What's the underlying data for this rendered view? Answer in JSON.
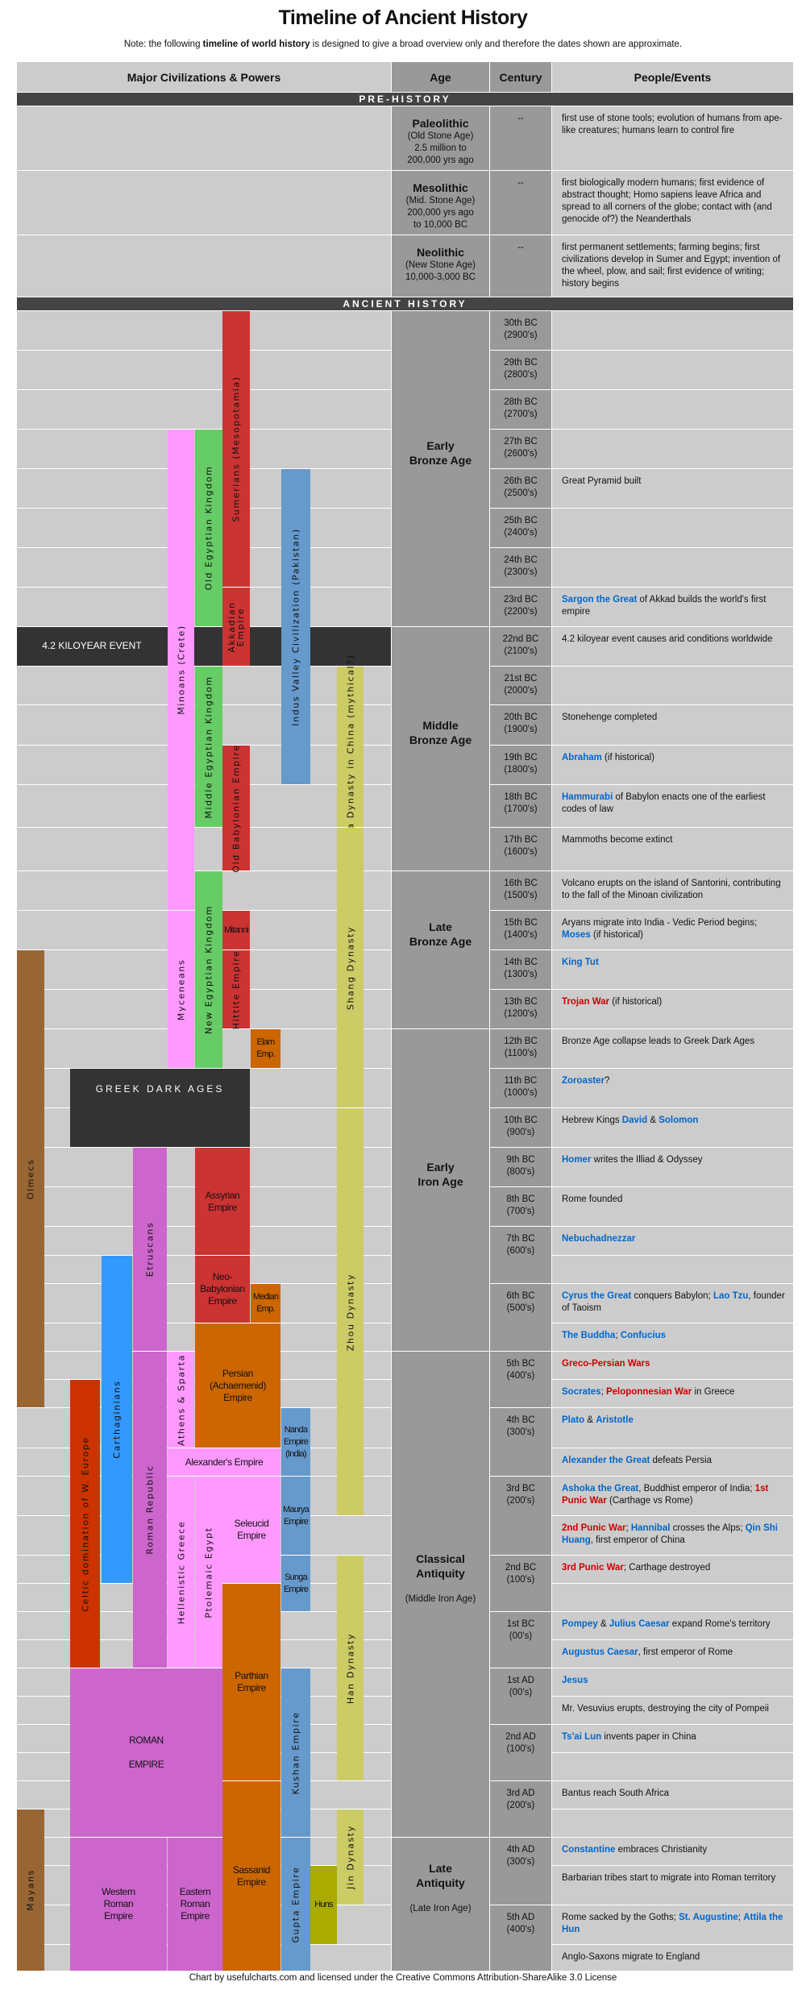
{
  "title": "Timeline of Ancient History",
  "note": {
    "before": "Note: the following ",
    "bold": "timeline of world history",
    "after": " is designed to give a broad overview only and therefore the dates shown are approximate."
  },
  "header": {
    "civs": "Major Civilizations & Powers",
    "age": "Age",
    "century": "Century",
    "events": "People/Events"
  },
  "prehistory": {
    "band": "PRE-HISTORY",
    "rows": [
      {
        "age": "Paleolithic",
        "sub": "(Old Stone Age)\n2.5 million to\n200,000 yrs ago",
        "century": "--",
        "events": "first use of stone tools; evolution of humans from ape-like creatures; humans learn to control fire"
      },
      {
        "age": "Mesolithic",
        "sub": "(Mid. Stone Age)\n200,000 yrs ago\nto 10,000 BC",
        "century": "--",
        "events": "first biologically modern humans; first evidence of abstract thought; Homo sapiens leave Africa and spread to all corners of the globe; contact with (and genocide of?) the Neanderthals"
      },
      {
        "age": "Neolithic",
        "sub": "(New Stone Age)\n10,000-3,000 BC",
        "century": "--",
        "events": "first permanent settlements; farming begins; first civilizations develop in Sumer and Egypt; invention of the wheel, plow, and sail; first evidence of writing; history begins"
      }
    ]
  },
  "ancient": {
    "band": "ANCIENT HISTORY",
    "ages": [
      {
        "name": "Early\nBronze Age",
        "sub": ""
      },
      {
        "name": "Middle\nBronze Age",
        "sub": ""
      },
      {
        "name": "Late\nBronze Age",
        "sub": ""
      },
      {
        "name": "Early\nIron Age",
        "sub": ""
      },
      {
        "name": "Classical\nAntiquity",
        "sub": "(Middle Iron Age)"
      },
      {
        "name": "Late\nAntiquity",
        "sub": "(Late Iron Age)"
      }
    ],
    "centuries": [
      {
        "label": "30th BC\n(2900's)",
        "events": [
          []
        ]
      },
      {
        "label": "29th BC\n(2800's)",
        "events": [
          []
        ]
      },
      {
        "label": "28th BC\n(2700's)",
        "events": [
          []
        ]
      },
      {
        "label": "27th BC\n(2600's)",
        "events": [
          []
        ]
      },
      {
        "label": "26th BC\n(2500's)",
        "events": [
          [
            {
              "text": "Great Pyramid built",
              "kind": ""
            }
          ]
        ]
      },
      {
        "label": "25th BC\n(2400's)",
        "events": [
          []
        ]
      },
      {
        "label": "24th BC\n(2300's)",
        "events": [
          []
        ]
      },
      {
        "label": "23rd BC\n(2200's)",
        "events": [
          [
            {
              "text": "Sargon the Great",
              "kind": "link"
            },
            {
              "text": " of Akkad builds the world's first empire",
              "kind": ""
            }
          ]
        ]
      },
      {
        "label": "22nd BC\n(2100's)",
        "events": [
          [
            {
              "text": "4.2 kiloyear event causes arid conditions worldwide",
              "kind": ""
            }
          ]
        ]
      },
      {
        "label": "21st BC\n(2000's)",
        "events": [
          []
        ]
      },
      {
        "label": "20th BC\n(1900's)",
        "events": [
          [
            {
              "text": "Stonehenge completed",
              "kind": ""
            }
          ]
        ]
      },
      {
        "label": "19th BC\n(1800's)",
        "events": [
          [
            {
              "text": "Abraham",
              "kind": "link"
            },
            {
              "text": " (if historical)",
              "kind": ""
            }
          ]
        ]
      },
      {
        "label": "18th BC\n(1700's)",
        "events": [
          [
            {
              "text": "Hammurabi",
              "kind": "link"
            },
            {
              "text": " of Babylon enacts one of the earliest codes of law",
              "kind": ""
            }
          ]
        ]
      },
      {
        "label": "17th BC\n(1600's)",
        "events": [
          [
            {
              "text": "Mammoths become extinct",
              "kind": ""
            }
          ]
        ]
      },
      {
        "label": "16th BC\n(1500's)",
        "events": [
          [
            {
              "text": "Volcano erupts on the island of Santorini, contributing to the fall of the Minoan civilization",
              "kind": ""
            }
          ]
        ]
      },
      {
        "label": "15th BC\n(1400's)",
        "events": [
          [
            {
              "text": "Aryans migrate into India - Vedic Period begins; ",
              "kind": ""
            },
            {
              "text": "Moses",
              "kind": "link"
            },
            {
              "text": " (if historical)",
              "kind": ""
            }
          ]
        ]
      },
      {
        "label": "14th BC\n(1300's)",
        "events": [
          [
            {
              "text": "King Tut",
              "kind": "link"
            }
          ]
        ]
      },
      {
        "label": "13th BC\n(1200's)",
        "events": [
          [
            {
              "text": "Trojan War",
              "kind": "war"
            },
            {
              "text": " (if historical)",
              "kind": ""
            }
          ]
        ]
      },
      {
        "label": "12th BC\n(1100's)",
        "events": [
          [
            {
              "text": "Bronze Age collapse leads to Greek Dark Ages",
              "kind": ""
            }
          ]
        ]
      },
      {
        "label": "11th BC\n(1000's)",
        "events": [
          [
            {
              "text": "Zoroaster",
              "kind": "link"
            },
            {
              "text": "?",
              "kind": ""
            }
          ]
        ]
      },
      {
        "label": "10th BC\n(900's)",
        "events": [
          [
            {
              "text": "Hebrew Kings ",
              "kind": ""
            },
            {
              "text": "David",
              "kind": "link"
            },
            {
              "text": " & ",
              "kind": ""
            },
            {
              "text": "Solomon",
              "kind": "link"
            }
          ]
        ]
      },
      {
        "label": "9th BC\n(800's)",
        "events": [
          [
            {
              "text": "Homer",
              "kind": "link"
            },
            {
              "text": " writes the Illiad & Odyssey",
              "kind": ""
            }
          ]
        ]
      },
      {
        "label": "8th BC\n(700's)",
        "events": [
          [
            {
              "text": "Rome founded",
              "kind": ""
            }
          ]
        ]
      },
      {
        "label": "7th BC\n(600's)",
        "events": [
          [
            {
              "text": "Nebuchadnezzar",
              "kind": "link"
            }
          ],
          []
        ]
      },
      {
        "label": "6th BC\n(500's)",
        "events": [
          [
            {
              "text": "Cyrus the Great",
              "kind": "link"
            },
            {
              "text": " conquers Babylon; ",
              "kind": ""
            },
            {
              "text": "Lao Tzu",
              "kind": "link"
            },
            {
              "text": ", founder of Taoism",
              "kind": ""
            }
          ],
          [
            {
              "text": "The Buddha",
              "kind": "link"
            },
            {
              "text": "; ",
              "kind": ""
            },
            {
              "text": "Confucius",
              "kind": "link"
            }
          ]
        ]
      },
      {
        "label": "5th BC\n(400's)",
        "events": [
          [
            {
              "text": "Greco-Persian Wars",
              "kind": "war"
            }
          ],
          [
            {
              "text": "Socrates",
              "kind": "link"
            },
            {
              "text": "; ",
              "kind": ""
            },
            {
              "text": "Peloponnesian War",
              "kind": "war"
            },
            {
              "text": " in Greece",
              "kind": ""
            }
          ]
        ]
      },
      {
        "label": "4th BC\n(300's)",
        "events": [
          [
            {
              "text": "Plato",
              "kind": "link"
            },
            {
              "text": " & ",
              "kind": ""
            },
            {
              "text": "Aristotle",
              "kind": "link"
            }
          ],
          [
            {
              "text": "Alexander the Great",
              "kind": "link"
            },
            {
              "text": " defeats Persia",
              "kind": ""
            }
          ]
        ]
      },
      {
        "label": "3rd BC\n(200's)",
        "events": [
          [
            {
              "text": "Ashoka the Great",
              "kind": "link"
            },
            {
              "text": ", Buddhist emperor of India; ",
              "kind": ""
            },
            {
              "text": "1st Punic War",
              "kind": "war"
            },
            {
              "text": " (Carthage vs Rome)",
              "kind": ""
            }
          ],
          [
            {
              "text": "2nd Punic War",
              "kind": "war"
            },
            {
              "text": "; ",
              "kind": ""
            },
            {
              "text": "Hannibal",
              "kind": "link"
            },
            {
              "text": " crosses the Alps; ",
              "kind": ""
            },
            {
              "text": "Qin Shi Huang",
              "kind": "link"
            },
            {
              "text": ", first emperor of China",
              "kind": ""
            }
          ]
        ]
      },
      {
        "label": "2nd BC\n(100's)",
        "events": [
          [
            {
              "text": "3rd Punic War",
              "kind": "war"
            },
            {
              "text": "; Carthage destroyed",
              "kind": ""
            }
          ],
          []
        ]
      },
      {
        "label": "1st BC\n(00's)",
        "events": [
          [
            {
              "text": "Pompey",
              "kind": "link"
            },
            {
              "text": " & ",
              "kind": ""
            },
            {
              "text": "Julius Caesar",
              "kind": "link"
            },
            {
              "text": " expand Rome's territory",
              "kind": ""
            }
          ],
          [
            {
              "text": "Augustus Caesar",
              "kind": "link"
            },
            {
              "text": ", first emperor of Rome",
              "kind": ""
            }
          ]
        ]
      },
      {
        "label": "1st AD\n(00's)",
        "events": [
          [
            {
              "text": "Jesus",
              "kind": "link"
            }
          ],
          [
            {
              "text": "Mr. Vesuvius erupts, destroying the city of Pompeii",
              "kind": ""
            }
          ]
        ]
      },
      {
        "label": "2nd AD\n(100's)",
        "events": [
          [
            {
              "text": "Ts'ai Lun",
              "kind": "link"
            },
            {
              "text": " invents paper in China",
              "kind": ""
            }
          ],
          []
        ]
      },
      {
        "label": "3rd AD\n(200's)",
        "events": [
          [
            {
              "text": "Bantus reach South Africa",
              "kind": ""
            }
          ],
          []
        ]
      },
      {
        "label": "4th AD\n(300's)",
        "events": [
          [
            {
              "text": "Constantine",
              "kind": "link"
            },
            {
              "text": " embraces Christianity",
              "kind": ""
            }
          ],
          [
            {
              "text": "Barbarian tribes start to migrate into Roman territory",
              "kind": ""
            }
          ]
        ]
      },
      {
        "label": "5th AD\n(400's)",
        "events": [
          [
            {
              "text": "Rome sacked by the Goths; ",
              "kind": ""
            },
            {
              "text": "St. Augustine",
              "kind": "link"
            },
            {
              "text": "; ",
              "kind": ""
            },
            {
              "text": "Attila the Hun",
              "kind": "link"
            }
          ],
          [
            {
              "text": "Anglo-Saxons migrate to England",
              "kind": ""
            }
          ]
        ]
      }
    ],
    "event_band": "4.2 KILOYEAR EVENT",
    "civs": [
      {
        "name": "Sumerians (Mesopotamia)",
        "color": "#cc3333"
      },
      {
        "name": "Akkadian\nEmpire",
        "color": "#cc3333"
      },
      {
        "name": "Old Babylonian Empire",
        "color": "#cc3333"
      },
      {
        "name": "Mitanni",
        "color": "#cc3333"
      },
      {
        "name": "Hittite Empire",
        "color": "#cc3333"
      },
      {
        "name": "Minoans (Crete)",
        "color": "#ff99ff"
      },
      {
        "name": "Myceneans",
        "color": "#ff99ff"
      },
      {
        "name": "Old Egyptian Kingdom",
        "color": "#66cc66"
      },
      {
        "name": "Middle Egyptian Kingdom",
        "color": "#66cc66"
      },
      {
        "name": "New Egyptian Kingdom",
        "color": "#66cc66"
      },
      {
        "name": "Indus Valley Civilization (Pakistan)",
        "color": "#6699cc"
      },
      {
        "name": "Xia Dynasty in China (mythical?)",
        "color": "#cccc66"
      },
      {
        "name": "Shang Dynasty",
        "color": "#cccc66"
      },
      {
        "name": "Zhou Dynasty",
        "color": "#cccc66"
      },
      {
        "name": "Han Dynasty",
        "color": "#cccc66"
      },
      {
        "name": "Jin Dynasty",
        "color": "#cccc66"
      },
      {
        "name": "Elam\nEmp.",
        "color": "#cc6600"
      },
      {
        "name": "GREEK DARK AGES",
        "color": "#333333"
      },
      {
        "name": "Olmecs",
        "color": "#996633"
      },
      {
        "name": "Assyrian\nEmpire",
        "color": "#cc3333"
      },
      {
        "name": "Neo-\nBabylonian\nEmpire",
        "color": "#cc3333"
      },
      {
        "name": "Median\nEmp.",
        "color": "#cc6600"
      },
      {
        "name": "Persian\n(Achaemenid)\nEmpire",
        "color": "#cc6600"
      },
      {
        "name": "Etruscans",
        "color": "#cc66cc"
      },
      {
        "name": "Roman Republic",
        "color": "#cc66cc"
      },
      {
        "name": "Carthaginians",
        "color": "#3399ff"
      },
      {
        "name": "Celtic domination of W. Europe",
        "color": "#cc3300"
      },
      {
        "name": "Athens & Sparta",
        "color": "#ff99ff"
      },
      {
        "name": "Alexander's Empire",
        "color": "#ff99ff"
      },
      {
        "name": "Hellenistic Greece",
        "color": "#ff99ff"
      },
      {
        "name": "Ptolemaic Egypt",
        "color": "#ff99ff"
      },
      {
        "name": "Seleucid\nEmpire",
        "color": "#ff99ff"
      },
      {
        "name": "Parthian\nEmpire",
        "color": "#cc6600"
      },
      {
        "name": "Sassanid\nEmpire",
        "color": "#cc6600"
      },
      {
        "name": "Nanda\nEmpire\n(India)",
        "color": "#6699cc"
      },
      {
        "name": "Maurya\nEmpire",
        "color": "#6699cc"
      },
      {
        "name": "Sunga\nEmpire",
        "color": "#6699cc"
      },
      {
        "name": "Kushan Empire",
        "color": "#6699cc"
      },
      {
        "name": "Gupta Empire",
        "color": "#6699cc"
      },
      {
        "name": "Huns",
        "color": "#aaaa00"
      },
      {
        "name": "ROMAN\n\nEMPIRE",
        "color": "#cc66cc"
      },
      {
        "name": "Western\nRoman\nEmpire",
        "color": "#cc66cc"
      },
      {
        "name": "Eastern\nRoman\nEmpire",
        "color": "#cc66cc"
      },
      {
        "name": "Mayans",
        "color": "#996633"
      }
    ]
  },
  "colors": {
    "link": "#0066cc",
    "war": "#cc0000",
    "band": "#444444",
    "cell_light": "#cccccc",
    "cell_dark": "#999999"
  },
  "footer": "Chart by usefulcharts.com and licensed under the Creative Commons Attribution-ShareAlike 3.0 License"
}
